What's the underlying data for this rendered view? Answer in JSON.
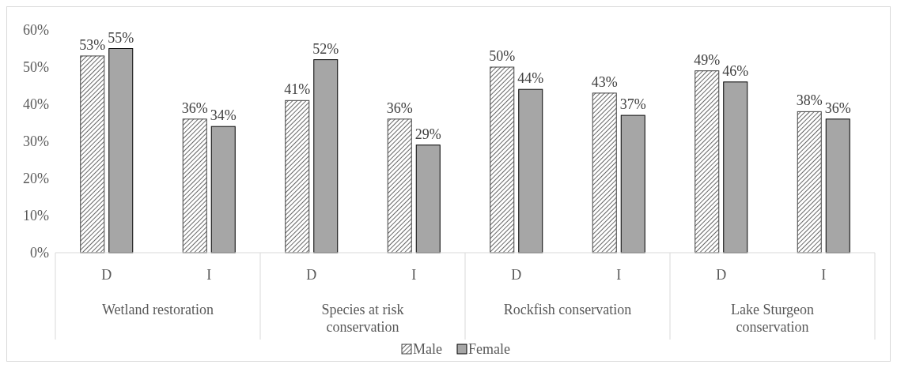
{
  "chart_data": {
    "type": "bar",
    "categories": [
      "D",
      "I",
      "D",
      "I",
      "D",
      "I",
      "D",
      "I"
    ],
    "series": [
      {
        "name": "Male",
        "color": "#404040",
        "values": [
          53,
          36,
          41,
          36,
          50,
          43,
          49,
          38
        ],
        "value_labels": [
          "53%",
          "36%",
          "41%",
          "36%",
          "50%",
          "43%",
          "49%",
          "38%"
        ]
      },
      {
        "name": "Female",
        "color": "#a6a6a6",
        "values": [
          55,
          34,
          52,
          29,
          44,
          37,
          46,
          36
        ],
        "value_labels": [
          "55%",
          "34%",
          "52%",
          "29%",
          "44%",
          "37%",
          "46%",
          "36%"
        ]
      }
    ],
    "ylim": [
      0,
      60
    ],
    "yticks": [
      {
        "value": 0,
        "label": "0%"
      },
      {
        "value": 10,
        "label": "10%"
      },
      {
        "value": 20,
        "label": "20%"
      },
      {
        "value": 30,
        "label": "30%"
      },
      {
        "value": 40,
        "label": "40%"
      },
      {
        "value": 50,
        "label": "50%"
      },
      {
        "value": 60,
        "label": "60%"
      }
    ],
    "annotations": [
      "Wetland restoration",
      "Species at risk conservation",
      "Rockfish conservation",
      "Lake Sturgeon conservation"
    ],
    "grid": false,
    "legend": "bottom"
  }
}
